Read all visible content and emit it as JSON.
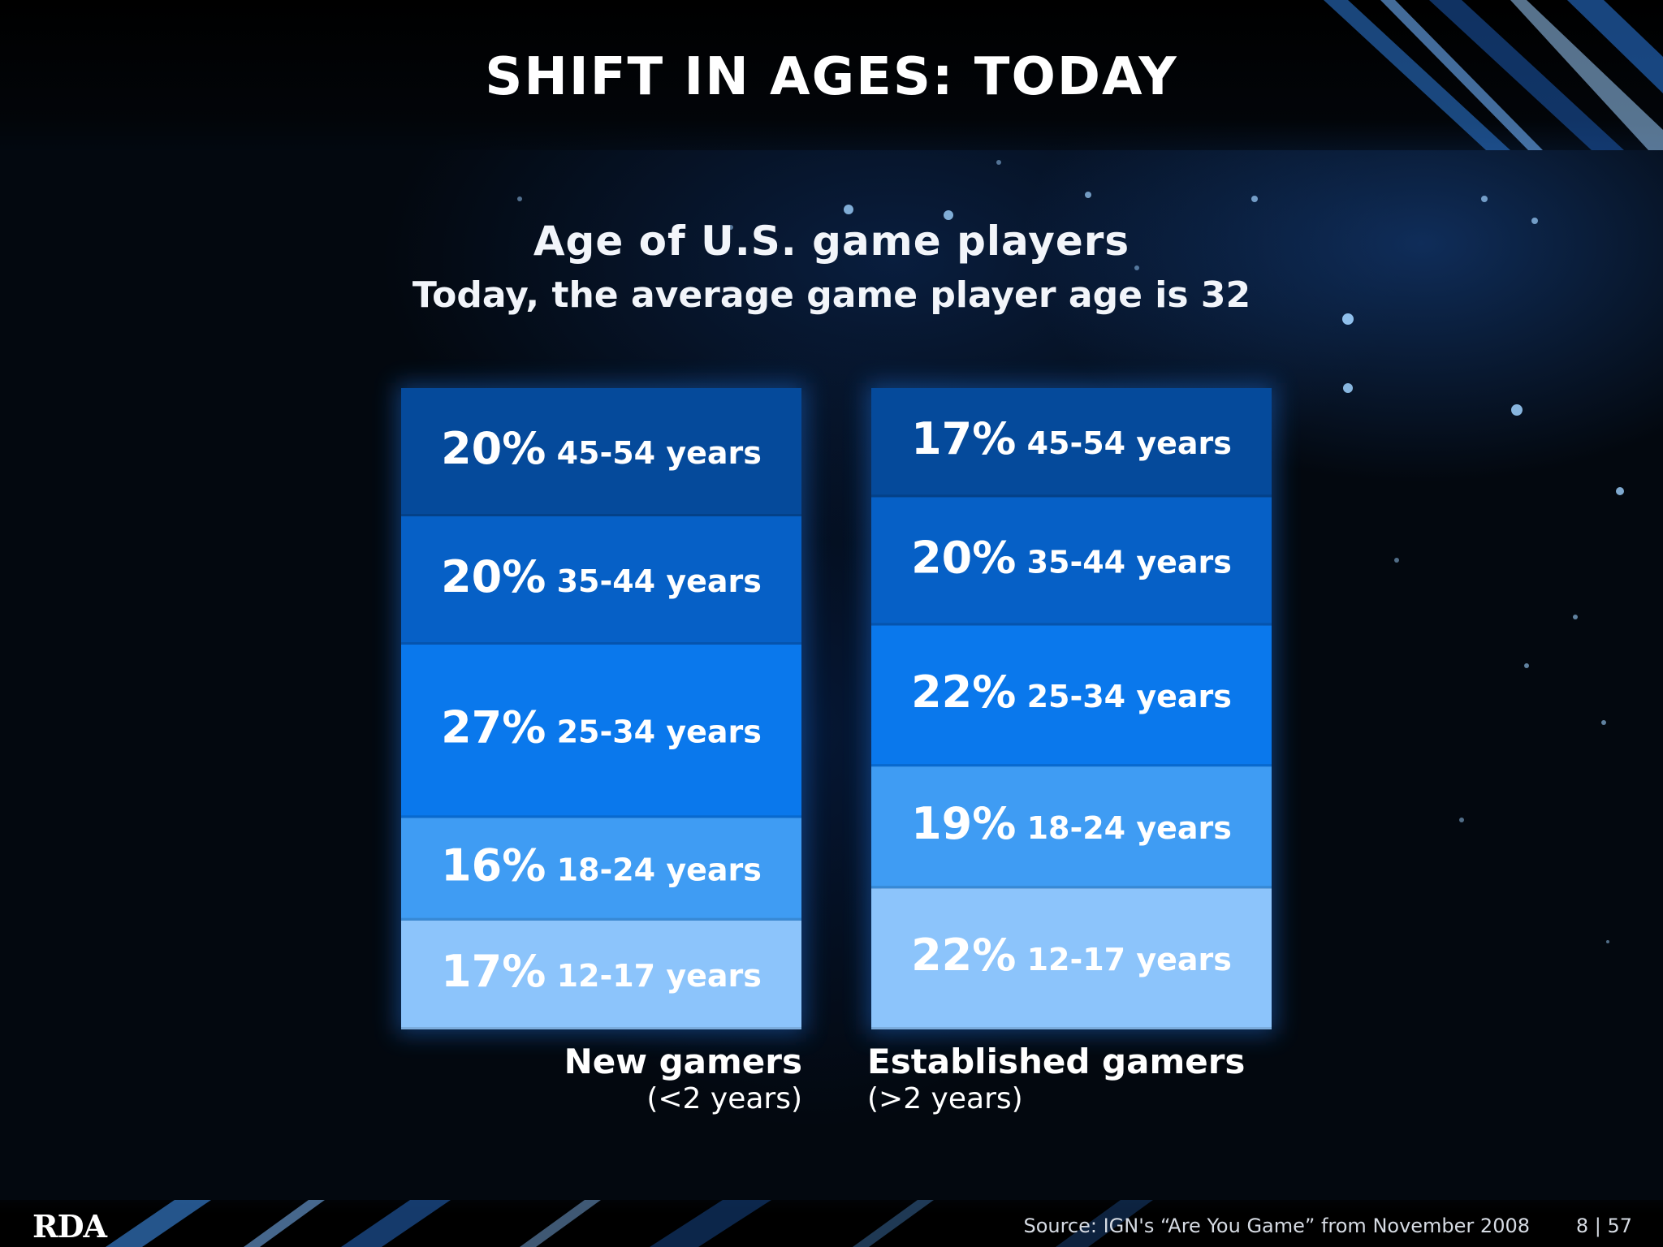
{
  "slide": {
    "title": "SHIFT IN AGES: TODAY",
    "logo": "RDA",
    "source": "Source: IGN's “Are You Game” from November 2008",
    "page": "8 | 57"
  },
  "chart_data": {
    "type": "bar",
    "stacked": true,
    "percent_scale": true,
    "title": "Age of U.S. game players",
    "subtitle": "Today, the average game player age is 32",
    "categories": [
      "New gamers",
      "Established gamers"
    ],
    "category_sublabels": [
      "(<2 years)",
      "(>2 years)"
    ],
    "series": [
      {
        "name": "12-17 years",
        "values": [
          17,
          22
        ],
        "color": "#8cc4fb"
      },
      {
        "name": "18-24 years",
        "values": [
          16,
          19
        ],
        "color": "#3f9cf3"
      },
      {
        "name": "25-34 years",
        "values": [
          27,
          22
        ],
        "color": "#0a78ec"
      },
      {
        "name": "35-44 years",
        "values": [
          20,
          20
        ],
        "color": "#0660c6"
      },
      {
        "name": "45-54 years",
        "values": [
          20,
          17
        ],
        "color": "#054a9b"
      }
    ],
    "value_suffix": "%",
    "legend": "none",
    "grid": false
  }
}
